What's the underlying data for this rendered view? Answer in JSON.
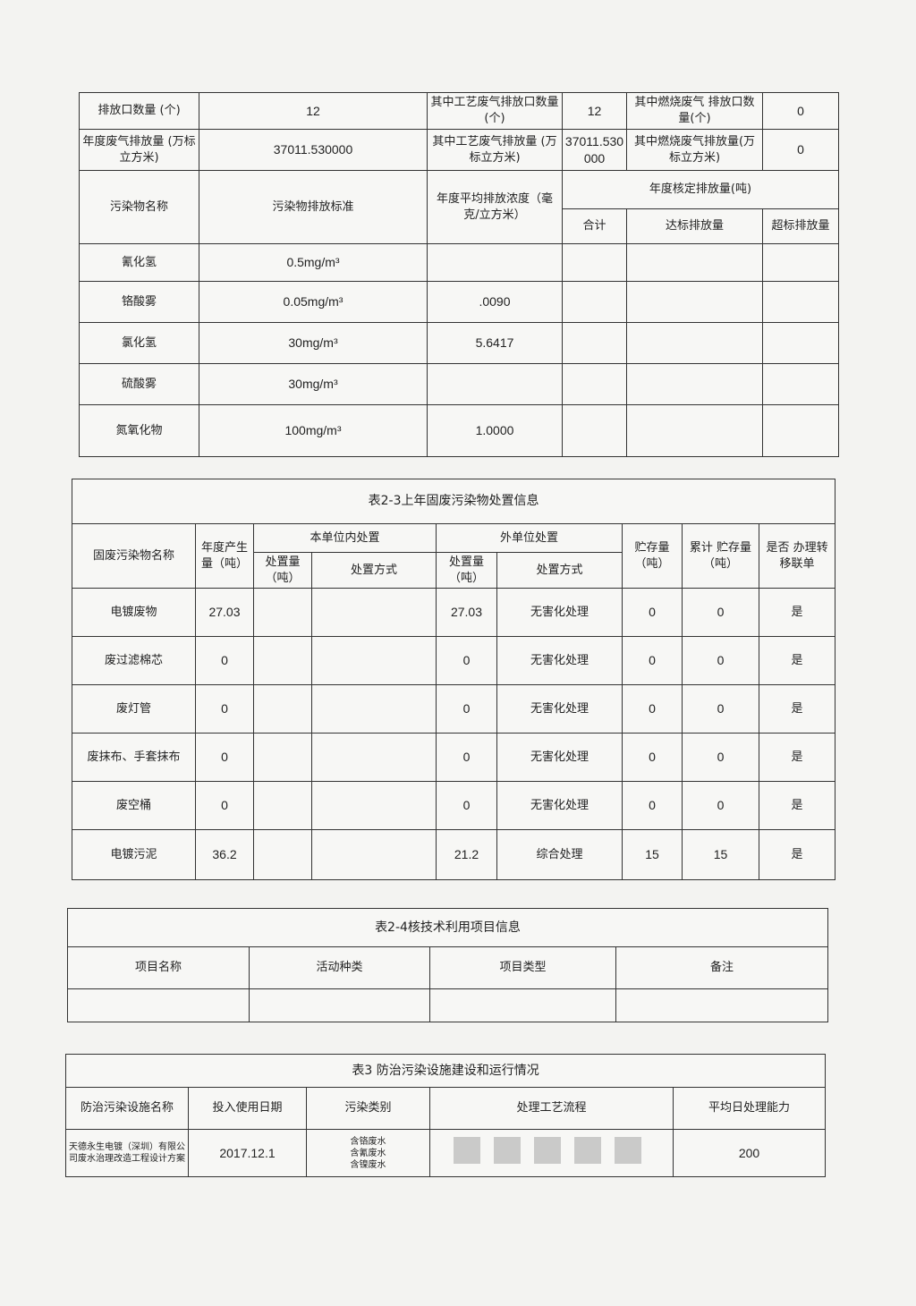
{
  "table_2_2": {
    "r1": {
      "l1": "排放口数量 (个)",
      "v1": "12",
      "l2": "其中工艺废气排放口数量 (个)",
      "v2": "12",
      "l3": "其中燃烧废气 排放口数量(个)",
      "v3": "0"
    },
    "r2": {
      "l1": "年度废气排放量 (万标立方米)",
      "v1": "37011.530000",
      "l2": "其中工艺废气排放量 (万标立方米)",
      "v2": "37011.530000",
      "l3": "其中燃烧废气排放量(万标立方米)",
      "v3": "0"
    },
    "headers": {
      "name": "污染物名称",
      "standard": "污染物排放标准",
      "avg": "年度平均排放浓度（毫克/立方米）",
      "annual": "年度核定排放量(吨)",
      "total": "合计",
      "compliant": "达标排放量",
      "excess": "超标排放量"
    },
    "rows": [
      {
        "name": "氰化氢",
        "standard": "0.5mg/m³",
        "avg": ""
      },
      {
        "name": "铬酸雾",
        "standard": "0.05mg/m³",
        "avg": ".0090"
      },
      {
        "name": "氯化氢",
        "standard": "30mg/m³",
        "avg": "5.6417"
      },
      {
        "name": "硫酸雾",
        "standard": "30mg/m³",
        "avg": ""
      },
      {
        "name": "氮氧化物",
        "standard": "100mg/m³",
        "avg": "1.0000"
      }
    ]
  },
  "table_2_3": {
    "title": "表2-3上年固废污染物处置信息",
    "headers": {
      "name": "固废污染物名称",
      "annual": "年度产生量（吨）",
      "internal": "本单位内处置",
      "int_qty": "处置量（吨）",
      "int_method": "处置方式",
      "external": "外单位处置",
      "ext_qty": "处置量（吨）",
      "ext_method": "处置方式",
      "storage": "贮存量（吨）",
      "cum_storage": "累计 贮存量（吨）",
      "transfer": "是否 办理转移联单"
    },
    "rows": [
      {
        "name": "电镀废物",
        "annual": "27.03",
        "ext_qty": "27.03",
        "ext_method": "无害化处理",
        "storage": "0",
        "cum": "0",
        "transfer": "是"
      },
      {
        "name": "废过滤棉芯",
        "annual": "0",
        "ext_qty": "0",
        "ext_method": "无害化处理",
        "storage": "0",
        "cum": "0",
        "transfer": "是"
      },
      {
        "name": "废灯管",
        "annual": "0",
        "ext_qty": "0",
        "ext_method": "无害化处理",
        "storage": "0",
        "cum": "0",
        "transfer": "是"
      },
      {
        "name": "废抹布、手套抹布",
        "annual": "0",
        "ext_qty": "0",
        "ext_method": "无害化处理",
        "storage": "0",
        "cum": "0",
        "transfer": "是"
      },
      {
        "name": "废空桶",
        "annual": "0",
        "ext_qty": "0",
        "ext_method": "无害化处理",
        "storage": "0",
        "cum": "0",
        "transfer": "是"
      },
      {
        "name": "电镀污泥",
        "annual": "36.2",
        "ext_qty": "21.2",
        "ext_method": "综合处理",
        "storage": "15",
        "cum": "15",
        "transfer": "是"
      }
    ]
  },
  "table_2_4": {
    "title": "表2-4核技术利用项目信息",
    "headers": [
      "项目名称",
      "活动种类",
      "项目类型",
      "备注"
    ]
  },
  "table_3": {
    "title": "表3 防治污染设施建设和运行情况",
    "headers": [
      "防治污染设施名称",
      "投入使用日期",
      "污染类别",
      "处理工艺流程",
      "平均日处理能力"
    ],
    "row": {
      "name": "天德永生电镀（深圳）有限公司废水治理改造工程设计方案",
      "date": "2017.12.1",
      "categories": [
        "含铬废水",
        "含氰废水",
        "含镍废水"
      ],
      "capacity": "200"
    }
  }
}
